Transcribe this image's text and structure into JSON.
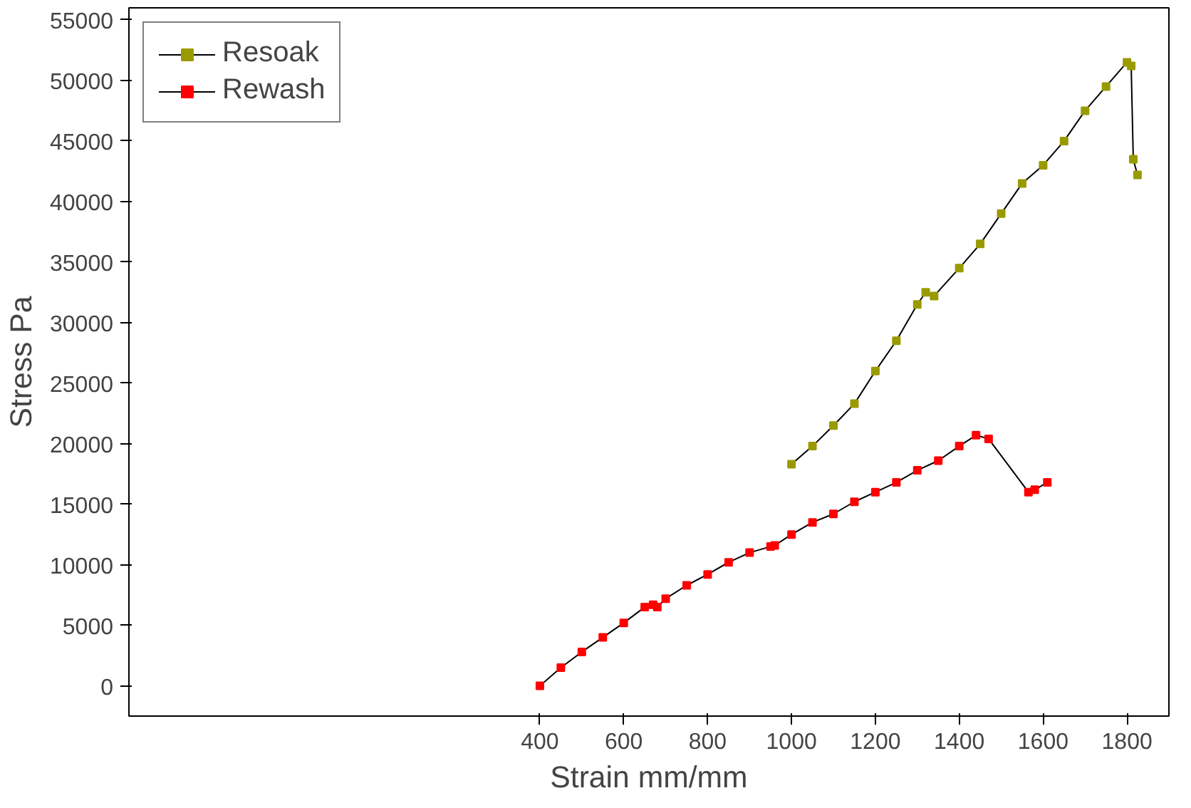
{
  "chart_data": {
    "type": "line",
    "xlabel": "Strain mm/mm",
    "ylabel": "Stress Pa",
    "xlim": [
      -580,
      1900
    ],
    "ylim": [
      -2500,
      56000
    ],
    "xticks": [
      400,
      600,
      800,
      1000,
      1200,
      1400,
      1600,
      1800
    ],
    "yticks": [
      0,
      5000,
      10000,
      15000,
      20000,
      25000,
      30000,
      35000,
      40000,
      45000,
      50000,
      55000
    ],
    "legend": "top left",
    "marker": "square",
    "grid": false,
    "series": [
      {
        "name": "Resoak",
        "color": "#9a9a00",
        "x": [
          1000,
          1050,
          1100,
          1150,
          1200,
          1250,
          1300,
          1320,
          1340,
          1400,
          1450,
          1500,
          1550,
          1600,
          1650,
          1700,
          1750,
          1800,
          1810,
          1815,
          1825
        ],
        "values": [
          18300,
          19800,
          21500,
          23300,
          26000,
          28500,
          31500,
          32500,
          32200,
          34500,
          36500,
          39000,
          41500,
          43000,
          45000,
          47500,
          49500,
          51500,
          51200,
          43500,
          42200
        ]
      },
      {
        "name": "Rewash",
        "color": "#ff0000",
        "x": [
          400,
          450,
          500,
          550,
          600,
          650,
          670,
          680,
          700,
          750,
          800,
          850,
          900,
          950,
          960,
          1000,
          1050,
          1100,
          1150,
          1200,
          1250,
          1300,
          1350,
          1400,
          1440,
          1470,
          1565,
          1580,
          1610
        ],
        "values": [
          0,
          1500,
          2800,
          4000,
          5200,
          6500,
          6700,
          6500,
          7200,
          8300,
          9200,
          10200,
          11000,
          11500,
          11600,
          12500,
          13500,
          14200,
          15200,
          16000,
          16800,
          17800,
          18600,
          19800,
          20700,
          20400,
          16000,
          16200,
          16800
        ]
      }
    ]
  }
}
